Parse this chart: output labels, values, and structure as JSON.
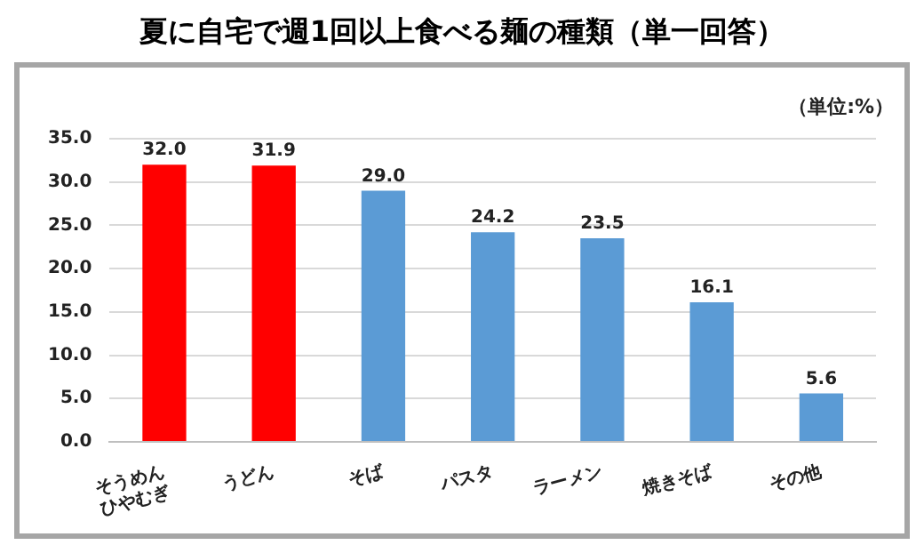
{
  "chart_data": {
    "type": "bar",
    "title": "夏に自宅で週1回以上食べる麺の種類（単一回答）",
    "categories": [
      "そうめん\nひやむぎ",
      "うどん",
      "そば",
      "パスタ",
      "ラーメン",
      "焼きそば",
      "その他"
    ],
    "values": [
      32.0,
      31.9,
      29.0,
      24.2,
      23.5,
      16.1,
      5.6
    ],
    "colors": [
      "#ff0000",
      "#ff0000",
      "#5b9bd5",
      "#5b9bd5",
      "#5b9bd5",
      "#5b9bd5",
      "#5b9bd5"
    ],
    "ylim": [
      0,
      35
    ],
    "yticks": [
      {
        "value": 0,
        "label": "0.0"
      },
      {
        "value": 5,
        "label": "5.0"
      },
      {
        "value": 10,
        "label": "10.0"
      },
      {
        "value": 15,
        "label": "15.0"
      },
      {
        "value": 20,
        "label": "20.0"
      },
      {
        "value": 25,
        "label": "25.0"
      },
      {
        "value": 30,
        "label": "30.0"
      },
      {
        "value": 35,
        "label": "35.0"
      }
    ],
    "value_labels": [
      "32.0",
      "31.9",
      "29.0",
      "24.2",
      "23.5",
      "16.1",
      "5.6"
    ],
    "grid": "y",
    "legend": false,
    "annotations": [
      "（単位:%）"
    ]
  }
}
